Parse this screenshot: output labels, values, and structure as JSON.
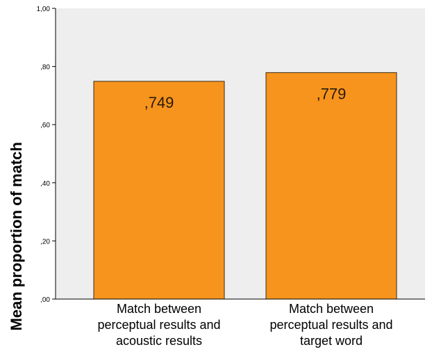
{
  "chart_data": {
    "type": "bar",
    "ylabel": "Mean proportion of match",
    "xlabel": "",
    "categories": [
      [
        "Match between",
        "perceptual results and",
        "acoustic results"
      ],
      [
        "Match between",
        "perceptual results and",
        "target word"
      ]
    ],
    "values": [
      0.749,
      0.779
    ],
    "data_labels": [
      ",749",
      ",779"
    ],
    "ylim": [
      0,
      1.0
    ],
    "yticks": [
      0,
      0.2,
      0.4,
      0.6,
      0.8,
      1.0
    ],
    "ytick_labels": [
      ",00",
      ",20",
      ",40",
      ",60",
      ",80",
      "1,00"
    ],
    "grid": false,
    "colors": {
      "bar": "#F7941D",
      "bar_edge": "#3a2a1a",
      "plot_background": "#EEEEEE",
      "axis": "#000000"
    }
  }
}
